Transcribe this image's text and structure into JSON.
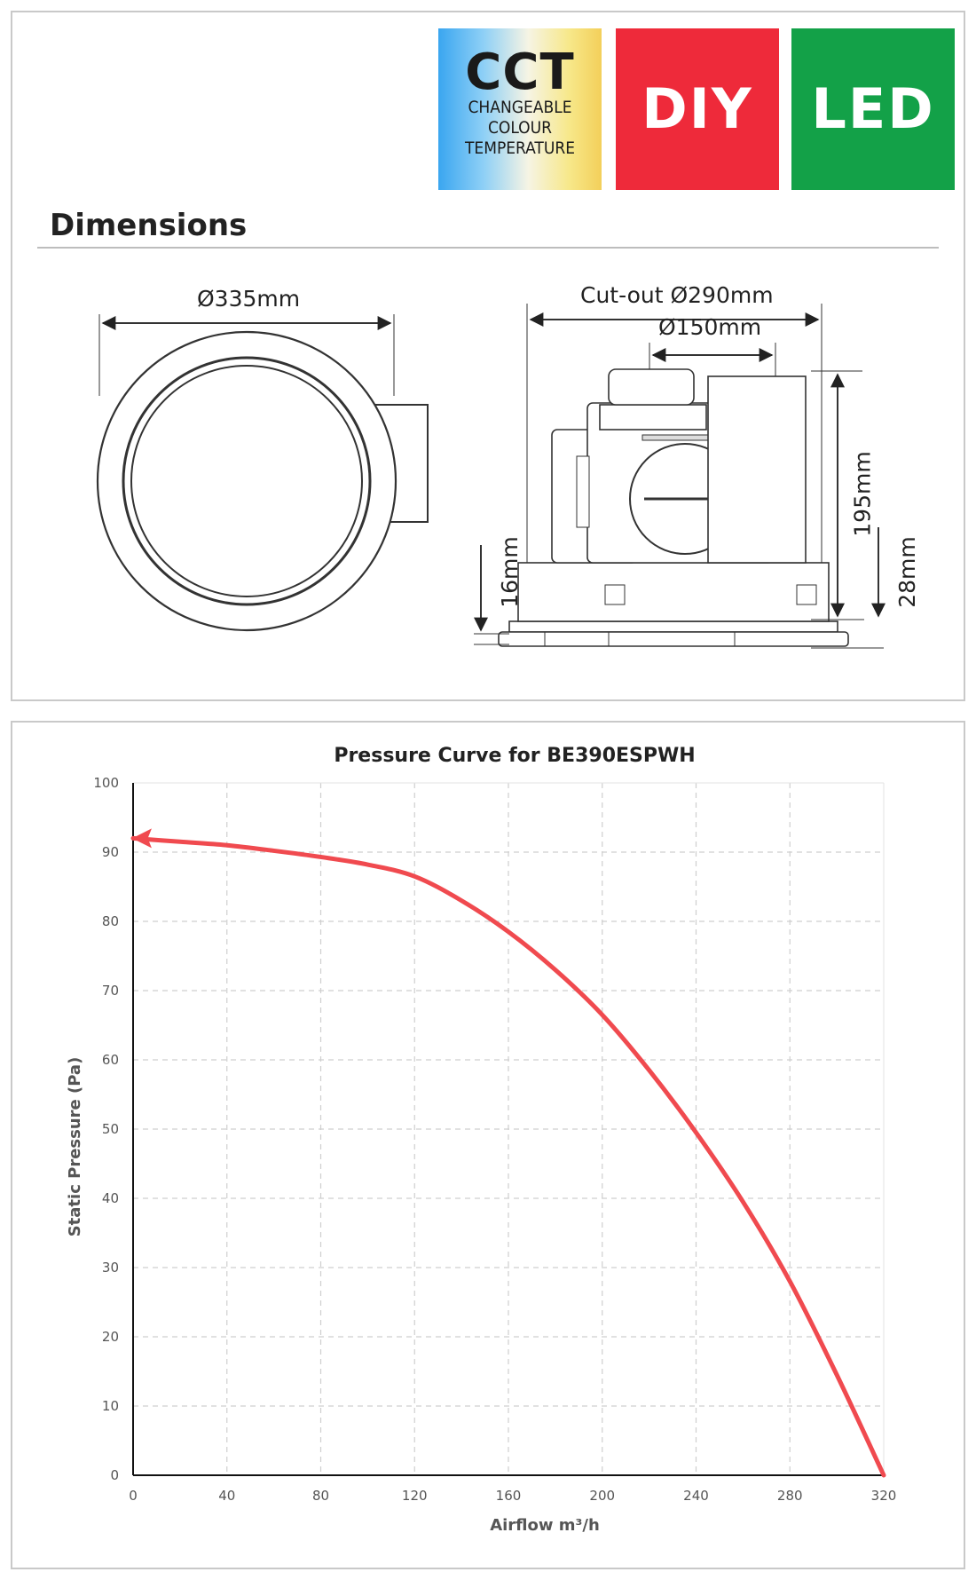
{
  "badges": {
    "cct": {
      "big": "CCT",
      "line1": "CHANGEABLE",
      "line2": "COLOUR",
      "line3": "TEMPERATURE"
    },
    "diy": "DIY",
    "led": "LED",
    "colors": {
      "diy": "#ee2a3a",
      "led": "#13a148",
      "cct_start": "#3aa6f0",
      "cct_end": "#f3cf5a"
    }
  },
  "dimensions": {
    "title": "Dimensions",
    "diameter": "Ø335mm",
    "cutout": "Cut-out Ø290mm",
    "duct": "Ø150mm",
    "height": "195mm",
    "flange_depth": "28mm",
    "grille_depth": "16mm"
  },
  "chart_data": {
    "type": "line",
    "title": "Pressure Curve for BE390ESPWH",
    "xlabel": "Airflow m³/h",
    "ylabel": "Static Pressure (Pa)",
    "xlim": [
      0,
      320
    ],
    "ylim": [
      0,
      100
    ],
    "xticks": [
      0,
      40,
      80,
      120,
      160,
      200,
      240,
      280,
      320
    ],
    "yticks": [
      0,
      10,
      20,
      30,
      40,
      50,
      60,
      70,
      80,
      90,
      100
    ],
    "grid": true,
    "line_color": "#f04a4f",
    "arrow_at_start": true,
    "series": [
      {
        "x": [
          0,
          20,
          40,
          60,
          80,
          100,
          120,
          140,
          160,
          180,
          200,
          220,
          240,
          260,
          280,
          300,
          320
        ],
        "y": [
          92,
          91.5,
          91,
          90.2,
          89.3,
          88.2,
          86.5,
          83,
          78.5,
          73,
          66.5,
          58.5,
          49.5,
          39.5,
          28,
          14.5,
          0
        ]
      }
    ]
  }
}
